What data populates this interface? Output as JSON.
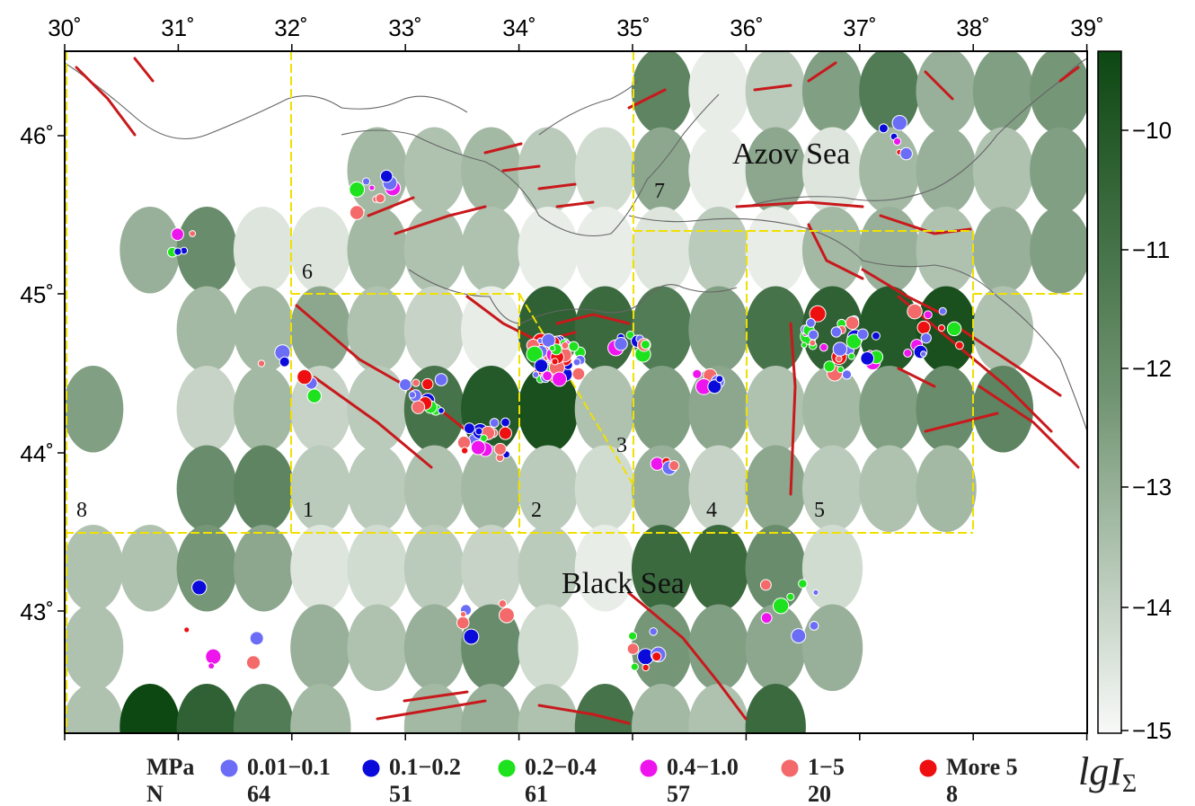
{
  "map": {
    "lon_ticks": [
      "30˚",
      "31˚",
      "32˚",
      "33˚",
      "34˚",
      "35˚",
      "36˚",
      "37˚",
      "38˚",
      "39˚"
    ],
    "lat_ticks": [
      "46˚",
      "45˚",
      "44˚",
      "43˚"
    ],
    "sea_labels": {
      "azov": "Azov Sea",
      "black": "Black Sea"
    },
    "region_numbers": [
      "1",
      "2",
      "3",
      "4",
      "5",
      "6",
      "7",
      "8"
    ],
    "colors": {
      "grid_line": "#f0e000",
      "fault": "#c8191c",
      "cell_dark": "#0d4712",
      "cell_light": "#f4f6f3"
    },
    "colorbar": {
      "title_main": "lgI",
      "title_sub": "Σ",
      "ticks": [
        "−10",
        "−11",
        "−12",
        "−13",
        "−14",
        "−15"
      ],
      "range": [
        -15,
        -9.5
      ]
    }
  },
  "legend": {
    "unit_label": "MPa",
    "count_label": "N",
    "classes": [
      {
        "range": "0.01−0.1",
        "count": "64",
        "color": "#6b6df7"
      },
      {
        "range": "0.1−0.2",
        "count": "51",
        "color": "#0a0adb"
      },
      {
        "range": "0.2−0.4",
        "count": "61",
        "color": "#1de21d"
      },
      {
        "range": "0.4−1.0",
        "count": "57",
        "color": "#ee14ee"
      },
      {
        "range": "1−5",
        "count": "20",
        "color": "#f46a6a"
      },
      {
        "range": "More 5",
        "count": "8",
        "color": "#ee1010"
      }
    ]
  }
}
